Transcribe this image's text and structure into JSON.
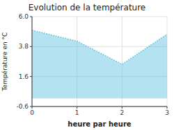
{
  "chart_data": {
    "type": "area",
    "title": "Evolution de la température",
    "x_label": "heure par heure",
    "y_label": "Température en °C",
    "x": [
      0,
      1,
      2,
      3
    ],
    "values": [
      5.0,
      4.2,
      2.5,
      4.7
    ],
    "color": "#5bbfdf",
    "line_style": "dotted",
    "xlim": [
      0,
      3
    ],
    "ylim": [
      -0.6,
      6.0
    ],
    "xticks": [
      0,
      1,
      2,
      3
    ],
    "yticks": [
      -0.6,
      1.6,
      3.8,
      {
        "value": 6.0,
        "label": "6.0"
      }
    ],
    "grid": true
  }
}
